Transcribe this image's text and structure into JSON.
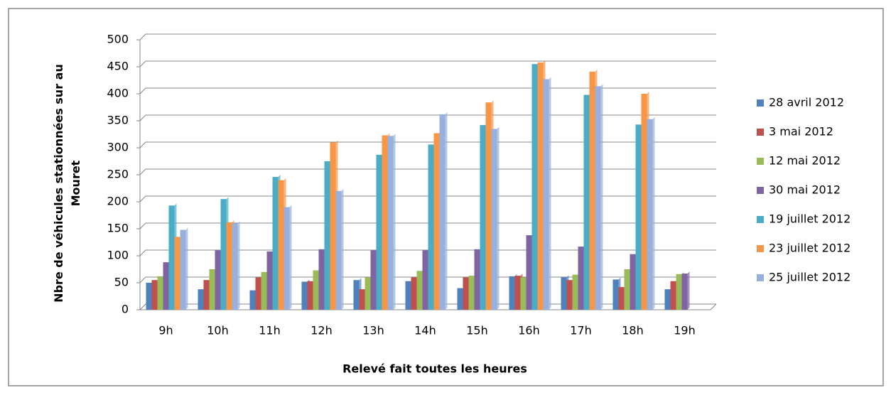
{
  "chart_data": {
    "type": "bar",
    "y_axis_label": "Nbre de véhicules stationnées sur au Mouret",
    "x_axis_label": "Relevé fait toutes les heures",
    "categories": [
      "9h",
      "10h",
      "11h",
      "12h",
      "13h",
      "14h",
      "15h",
      "16h",
      "17h",
      "18h",
      "19h"
    ],
    "series": [
      {
        "name": "28 avril 2012",
        "color": "#4f81bd",
        "values": [
          50,
          38,
          36,
          52,
          55,
          53,
          40,
          62,
          60,
          56,
          38
        ]
      },
      {
        "name": "3 mai 2012",
        "color": "#c0504d",
        "values": [
          55,
          55,
          60,
          53,
          38,
          60,
          60,
          63,
          55,
          42,
          53
        ]
      },
      {
        "name": "12 mai 2012",
        "color": "#9bbb59",
        "values": [
          62,
          75,
          70,
          73,
          60,
          72,
          63,
          60,
          65,
          75,
          66
        ]
      },
      {
        "name": "30 mai 2012",
        "color": "#8064a2",
        "values": [
          88,
          110,
          108,
          112,
          110,
          110,
          112,
          138,
          117,
          103,
          67
        ]
      },
      {
        "name": "19 juillet 2012",
        "color": "#4bacc6",
        "values": [
          193,
          205,
          246,
          275,
          287,
          306,
          342,
          455,
          398,
          343,
          0
        ]
      },
      {
        "name": "23 juillet 2012",
        "color": "#f79646",
        "values": [
          135,
          162,
          240,
          310,
          323,
          327,
          384,
          458,
          441,
          400,
          0
        ]
      },
      {
        "name": "25 juillet 2012",
        "color": "#99b0dd",
        "values": [
          148,
          160,
          190,
          220,
          322,
          362,
          335,
          427,
          414,
          353,
          0
        ]
      }
    ],
    "ylim": [
      0,
      500
    ],
    "yticks": [
      0,
      50,
      100,
      150,
      200,
      250,
      300,
      350,
      400,
      450,
      500
    ],
    "grid": true,
    "legend": "right"
  }
}
